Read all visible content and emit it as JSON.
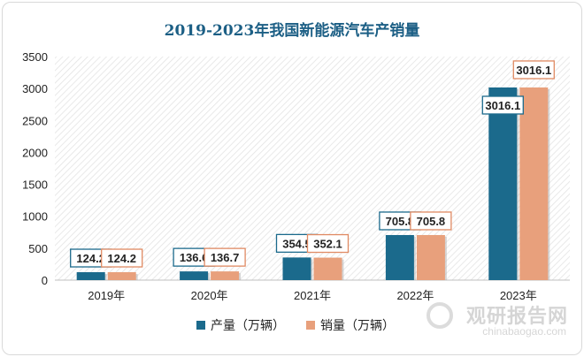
{
  "chart_data": {
    "type": "bar",
    "title": "2019-2023年我国新能源汽车产销量",
    "categories": [
      "2019年",
      "2020年",
      "2021年",
      "2022年",
      "2023年"
    ],
    "series": [
      {
        "name": "产量（万辆）",
        "color": "#1b6a8c",
        "values": [
          124.2,
          136.6,
          354.5,
          705.8,
          3016.1
        ]
      },
      {
        "name": "销量（万辆）",
        "color": "#e8a07c",
        "values": [
          124.2,
          136.7,
          352.1,
          705.8,
          3016.1
        ]
      }
    ],
    "ylim": [
      0,
      3500
    ],
    "yticks": [
      0,
      500,
      1000,
      1500,
      2000,
      2500,
      3000,
      3500
    ],
    "legend_position": "bottom",
    "data_labels": true
  },
  "watermark": {
    "text": "观研报告网",
    "url": "chinabaogao.com"
  }
}
